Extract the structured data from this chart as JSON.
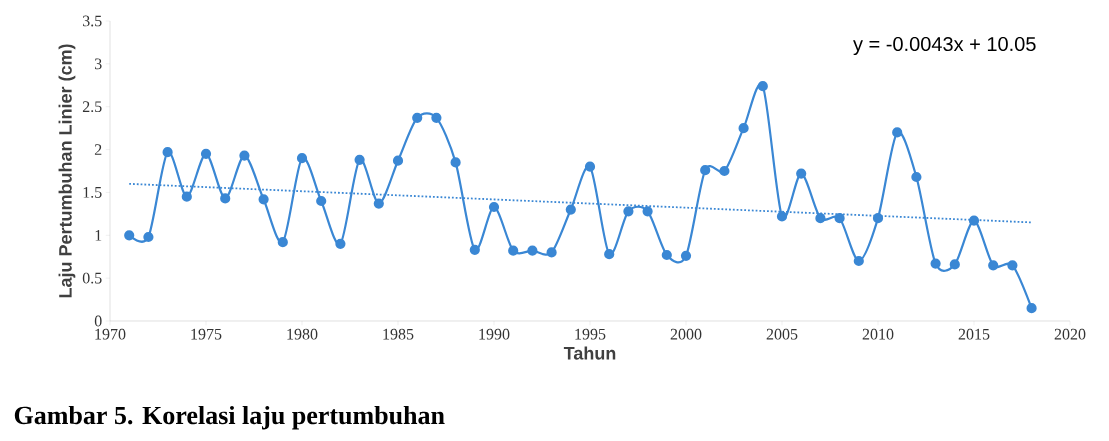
{
  "chart_data": {
    "type": "line",
    "xlabel": "Tahun",
    "ylabel": "Laju Pertumbuhan Linier (cm)",
    "xlim": [
      1970,
      2020
    ],
    "xticks": [
      1970,
      1975,
      1980,
      1985,
      1990,
      1995,
      2000,
      2005,
      2010,
      2015,
      2020
    ],
    "ylim": [
      0,
      3.5
    ],
    "yticks": [
      0,
      0.5,
      1,
      1.5,
      2,
      2.5,
      3,
      3.5
    ],
    "grid": false,
    "marker": "circle",
    "x": [
      1971,
      1972,
      1973,
      1974,
      1975,
      1976,
      1977,
      1978,
      1979,
      1980,
      1981,
      1982,
      1983,
      1984,
      1985,
      1986,
      1987,
      1988,
      1989,
      1990,
      1991,
      1992,
      1993,
      1994,
      1995,
      1996,
      1997,
      1998,
      1999,
      2000,
      2001,
      2002,
      2003,
      2004,
      2005,
      2006,
      2007,
      2008,
      2009,
      2010,
      2011,
      2012,
      2013,
      2014,
      2015,
      2016,
      2017,
      2018
    ],
    "series": [
      {
        "color": "#3a87d4",
        "line_style": "solid",
        "values": [
          1.0,
          0.98,
          1.97,
          1.45,
          1.95,
          1.43,
          1.93,
          1.42,
          0.92,
          1.9,
          1.4,
          0.9,
          1.88,
          1.37,
          1.87,
          2.37,
          2.37,
          1.85,
          0.83,
          1.33,
          0.82,
          0.82,
          0.8,
          1.3,
          1.8,
          0.78,
          1.28,
          1.28,
          0.77,
          0.76,
          1.76,
          1.75,
          2.25,
          2.74,
          1.22,
          1.72,
          1.2,
          1.2,
          0.7,
          1.2,
          2.2,
          1.68,
          0.67,
          0.66,
          1.17,
          0.65,
          0.65,
          0.15
        ]
      },
      {
        "type": "line",
        "color": "#3a87d4",
        "line_style": "dotted",
        "marker": "none",
        "x": [
          1971,
          2018
        ],
        "values": [
          1.6,
          1.15
        ]
      }
    ],
    "annotations": [
      "y = -0.0043x + 10.05",
      "Gambar 5.    Korelasi laju pertumbuhan"
    ]
  }
}
